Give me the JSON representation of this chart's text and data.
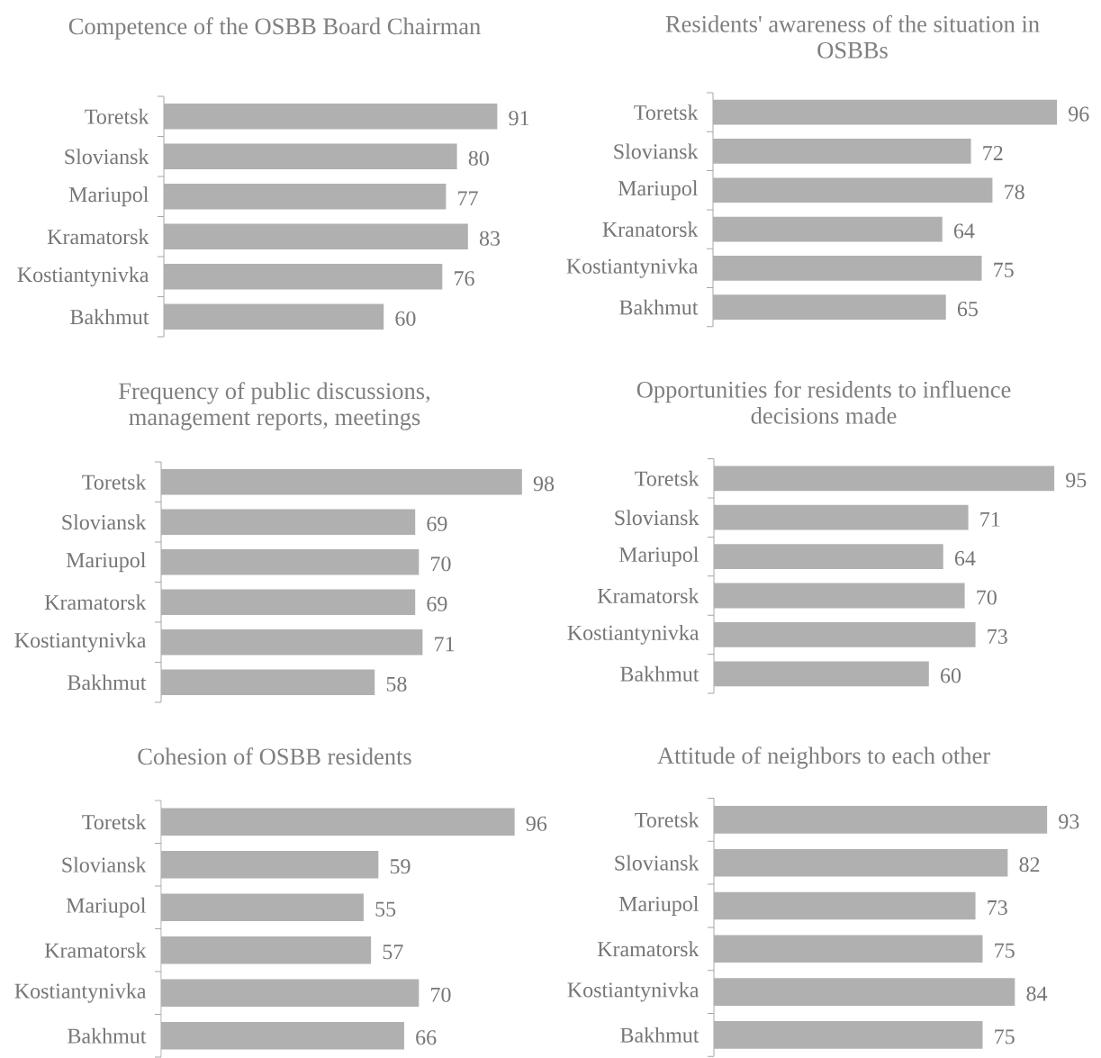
{
  "chart_data": [
    {
      "type": "bar",
      "orientation": "horizontal",
      "title": "Competence of the OSBB Board Chairman",
      "categories": [
        "Toretsk",
        "Sloviansk",
        "Mariupol",
        "Kramatorsk",
        "Kostiantynivka",
        "Bakhmut"
      ],
      "values": [
        91,
        80,
        77,
        83,
        76,
        60
      ],
      "color": "#b0b0b0",
      "data_labels": true,
      "tick_labels": "y"
    },
    {
      "type": "bar",
      "orientation": "horizontal",
      "title": "Residents' awareness of the situation in OSBBs",
      "categories": [
        "Toretsk",
        "Sloviansk",
        "Mariupol",
        "Kranatorsk",
        "Kostiantynivka",
        "Bakhmut"
      ],
      "values": [
        96,
        72,
        78,
        64,
        75,
        65
      ],
      "color": "#b0b0b0",
      "data_labels": true,
      "tick_labels": "y"
    },
    {
      "type": "bar",
      "orientation": "horizontal",
      "title": "Frequency of public discussions, management reports, meetings",
      "categories": [
        "Toretsk",
        "Sloviansk",
        "Mariupol",
        "Kramatorsk",
        "Kostiantynivka",
        "Bakhmut"
      ],
      "values": [
        98,
        69,
        70,
        69,
        71,
        58
      ],
      "color": "#b0b0b0",
      "data_labels": true,
      "tick_labels": "y"
    },
    {
      "type": "bar",
      "orientation": "horizontal",
      "title": "Opportunities for residents to influence decisions made",
      "categories": [
        "Toretsk",
        "Sloviansk",
        "Mariupol",
        "Kramatorsk",
        "Kostiantynivka",
        "Bakhmut"
      ],
      "values": [
        95,
        71,
        64,
        70,
        73,
        60
      ],
      "color": "#b0b0b0",
      "data_labels": true,
      "tick_labels": "y"
    },
    {
      "type": "bar",
      "orientation": "horizontal",
      "title": "Cohesion of OSBB residents",
      "categories": [
        "Toretsk",
        "Sloviansk",
        "Mariupol",
        "Kramatorsk",
        "Kostiantynivka",
        "Bakhmut"
      ],
      "values": [
        96,
        59,
        55,
        57,
        70,
        66
      ],
      "color": "#b0b0b0",
      "data_labels": true,
      "tick_labels": "y"
    },
    {
      "type": "bar",
      "orientation": "horizontal",
      "title": "Attitude of neighbors to each other",
      "categories": [
        "Toretsk",
        "Sloviansk",
        "Mariupol",
        "Kramatorsk",
        "Kostiantynivka",
        "Bakhmut"
      ],
      "values": [
        93,
        82,
        73,
        75,
        84,
        75
      ],
      "color": "#b0b0b0",
      "data_labels": true,
      "tick_labels": "y"
    }
  ]
}
